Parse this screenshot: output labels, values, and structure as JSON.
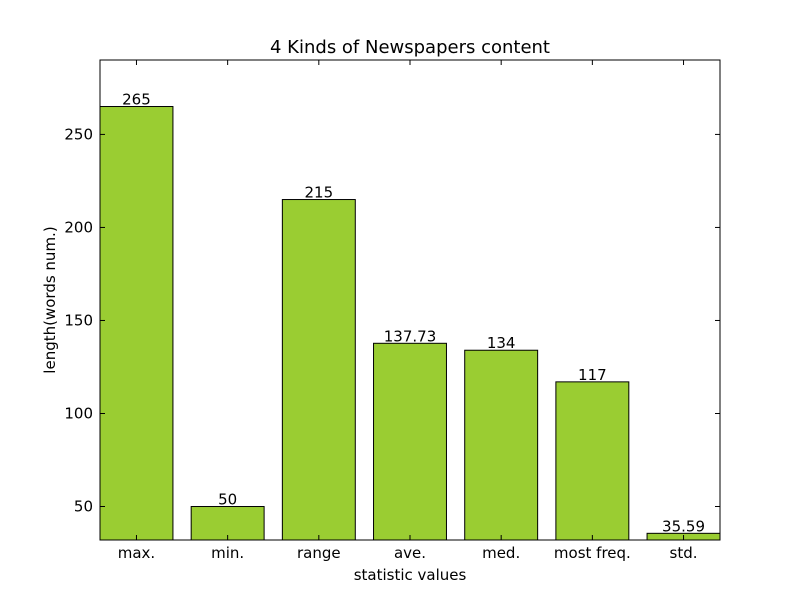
{
  "chart_data": {
    "type": "bar",
    "title": "4 Kinds of Newspapers content",
    "xlabel": "statistic values",
    "ylabel": "length(words num.)",
    "categories": [
      "max.",
      "min.",
      "range",
      "ave.",
      "med.",
      "most freq.",
      "std."
    ],
    "values": [
      265,
      50,
      215,
      137.73,
      134,
      117,
      35.59
    ],
    "value_labels": [
      "265",
      "50",
      "215",
      "137.73",
      "134",
      "117",
      "35.59"
    ],
    "ylim": [
      32,
      290
    ],
    "yticks": [
      50,
      100,
      150,
      200,
      250
    ],
    "bar_color": "#9acd32",
    "edge_color": "#000000",
    "grid": false
  }
}
